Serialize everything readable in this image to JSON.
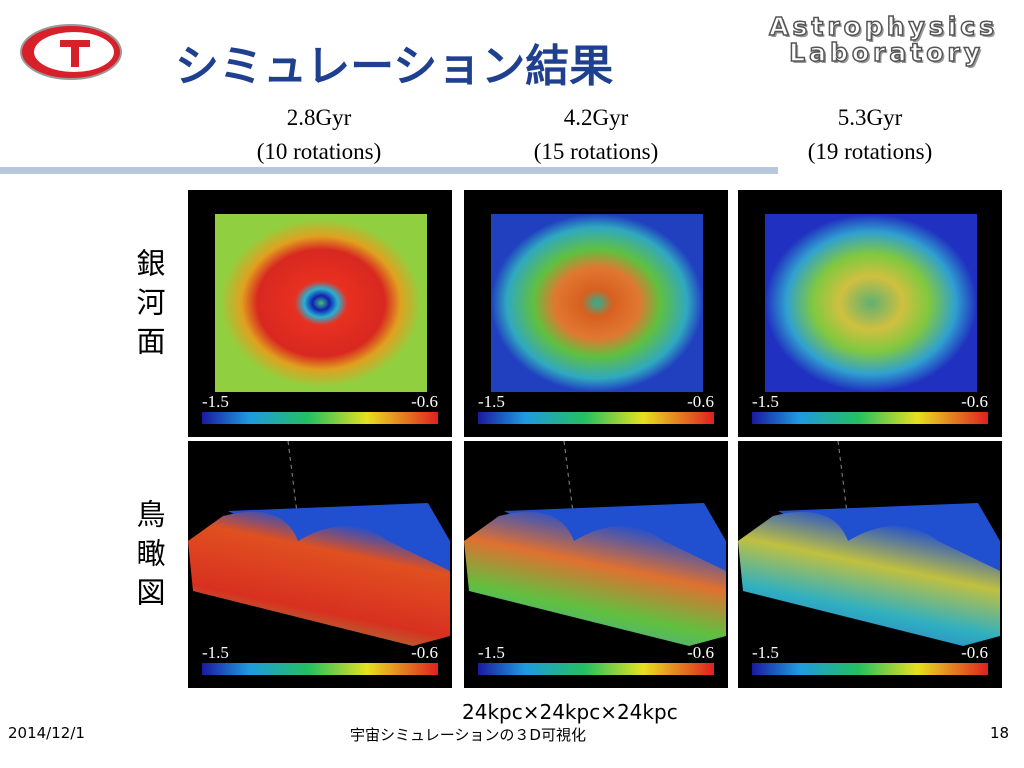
{
  "header": {
    "title": "シミュレーション結果",
    "logo_text": [
      "Astrophysics",
      "Laboratory"
    ]
  },
  "columns": [
    {
      "time": "2.8Gyr",
      "rotations": "(10 rotations)"
    },
    {
      "time": "4.2Gyr",
      "rotations": "(15 rotations)"
    },
    {
      "time": "5.3Gyr",
      "rotations": "(19 rotations)"
    }
  ],
  "rows": [
    {
      "label": "銀河面",
      "panels": [
        {
          "colorbar_min": "-1.5",
          "colorbar_max": "-0.6"
        },
        {
          "colorbar_min": "-1.5",
          "colorbar_max": "-0.6"
        },
        {
          "colorbar_min": "-1.5",
          "colorbar_max": "-0.6"
        }
      ]
    },
    {
      "label": "鳥瞰図",
      "panels": [
        {
          "colorbar_min": "-1.5",
          "colorbar_max": "-0.6"
        },
        {
          "colorbar_min": "-1.5",
          "colorbar_max": "-0.6"
        },
        {
          "colorbar_min": "-1.5",
          "colorbar_max": "-0.6"
        }
      ]
    }
  ],
  "caption": "24kpc×24kpc×24kpc",
  "footer": {
    "date": "2014/12/1",
    "subject": "宇宙シミュレーションの３D可視化",
    "page": "18"
  }
}
